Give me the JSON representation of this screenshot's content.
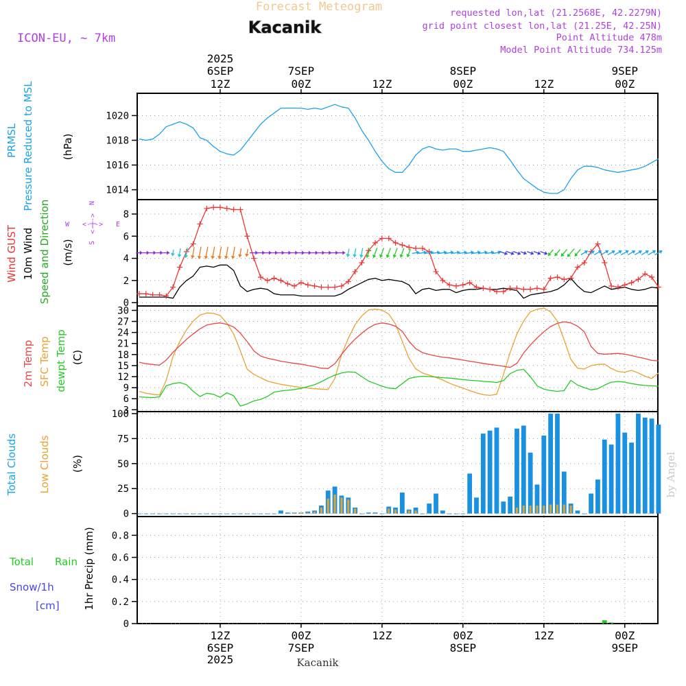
{
  "header": {
    "title": "Forecast Meteogram",
    "location": "Kacanik",
    "model": "ICON-EU,  ~ 7km",
    "requested": "requested lon,lat (21.2568E, 42.2279N)",
    "grid_point": "grid point closest lon,lat (21.25E, 42.25N)",
    "point_alt": "Point Altitude 478m",
    "model_alt": "Model Point Altitude 734.125m"
  },
  "footer_label": "Kacanik",
  "watermark": "by Angel",
  "time_axis": {
    "year_label": "2025",
    "top_ticks": [
      {
        "date": "6SEP",
        "hour": "12Z"
      },
      {
        "date": "7SEP",
        "hour": "00Z"
      },
      {
        "date": "",
        "hour": "12Z"
      },
      {
        "date": "8SEP",
        "hour": "00Z"
      },
      {
        "date": "",
        "hour": "12Z"
      },
      {
        "date": "9SEP",
        "hour": "00Z"
      }
    ],
    "tick_hours": [
      12,
      24,
      36,
      48,
      60,
      72
    ]
  },
  "panels": {
    "pressure": {
      "labels": [
        "PRMSL",
        "Pressure Reduced to MSL"
      ],
      "unit": "(hPa)",
      "ticks": [
        "1020",
        "1018",
        "1016",
        "1014"
      ]
    },
    "wind": {
      "labels": [
        "Wind GUST",
        "10m Wind",
        "Speed and Direction"
      ],
      "unit": "(m/s)",
      "ticks": [
        "8",
        "6",
        "4",
        "2",
        "0"
      ],
      "compass": {
        "n": "N",
        "s": "S",
        "e": "E",
        "w": "W",
        "arrows": "<-|->"
      }
    },
    "temperature": {
      "labels": [
        "2m Temp",
        "SFC Temp",
        "dewpt Temp"
      ],
      "unit": "(C)",
      "ticks": [
        "30",
        "27",
        "24",
        "21",
        "18",
        "15",
        "12",
        "9",
        "6",
        "3"
      ]
    },
    "clouds": {
      "labels": [
        "Total Clouds",
        "Low Clouds"
      ],
      "unit": "(%)",
      "ticks": [
        "100",
        "75",
        "50",
        "25",
        "0"
      ]
    },
    "precip": {
      "labels": [
        "Total",
        "Rain",
        "Snow/1h",
        "[cm]"
      ],
      "unit": "1hr Precip (mm)",
      "ticks": [
        "0.8",
        "0.6",
        "0.4",
        "0.2",
        "0"
      ]
    }
  },
  "colors": {
    "pressure": "#1aa3e8",
    "gust": "#ee3333",
    "wind": "#000000",
    "temp2m": "#e84545",
    "sfc": "#e8a232",
    "dew": "#22cc22",
    "total_clouds": "#1a90e0",
    "low_clouds": "#d9a441",
    "rain": "#22cc22",
    "snow": "#4444ee",
    "label_purple": "#b040e0",
    "title_orange": "#f0c890"
  },
  "chart_data": [
    {
      "type": "line",
      "name": "pressure",
      "title": "PRMSL Pressure Reduced to MSL",
      "ylabel": "hPa",
      "ylim": [
        1013.2,
        1021.8
      ],
      "x": [
        0,
        1,
        2,
        3,
        4,
        5,
        6,
        7,
        8,
        9,
        10,
        11,
        12,
        13,
        14,
        15,
        16,
        17,
        18,
        19,
        20,
        21,
        22,
        23,
        24,
        25,
        26,
        27,
        28,
        29,
        30,
        31,
        32,
        33,
        34,
        35,
        36,
        37,
        38,
        39,
        40,
        41,
        42,
        43,
        44,
        45,
        46,
        47,
        48,
        49,
        50,
        51,
        52,
        53,
        54,
        55,
        56,
        57,
        58,
        59,
        60,
        61,
        62,
        63,
        64,
        65,
        66,
        67,
        68,
        69,
        70,
        71,
        72,
        73,
        74,
        75,
        76,
        77
      ],
      "values": [
        1018.1,
        1018.0,
        1018.1,
        1018.5,
        1019.1,
        1019.3,
        1019.5,
        1019.3,
        1019.0,
        1018.2,
        1018.0,
        1017.5,
        1017.1,
        1016.9,
        1016.8,
        1017.2,
        1017.9,
        1018.6,
        1019.3,
        1019.8,
        1020.2,
        1020.6,
        1020.6,
        1020.6,
        1020.6,
        1020.5,
        1020.6,
        1020.5,
        1020.7,
        1020.9,
        1020.7,
        1020.6,
        1019.8,
        1018.8,
        1018.0,
        1017.1,
        1016.3,
        1015.7,
        1015.4,
        1015.4,
        1016.0,
        1016.8,
        1017.3,
        1017.5,
        1017.3,
        1017.2,
        1017.3,
        1017.3,
        1017.1,
        1017.1,
        1017.2,
        1017.3,
        1017.4,
        1017.3,
        1017.1,
        1016.4,
        1015.6,
        1014.9,
        1014.5,
        1014.1,
        1013.8,
        1013.7,
        1013.7,
        1014.0,
        1014.9,
        1015.6,
        1015.9,
        1015.9,
        1015.8,
        1015.6,
        1015.5,
        1015.4,
        1015.5,
        1015.6,
        1015.7,
        1015.9,
        1016.2,
        1016.5
      ]
    },
    {
      "type": "line",
      "name": "wind",
      "title": "Wind GUST / 10m Wind Speed and Direction",
      "ylabel": "m/s",
      "ylim": [
        -0.3,
        9.3
      ],
      "x": [
        0,
        1,
        2,
        3,
        4,
        5,
        6,
        7,
        8,
        9,
        10,
        11,
        12,
        13,
        14,
        15,
        16,
        17,
        18,
        19,
        20,
        21,
        22,
        23,
        24,
        25,
        26,
        27,
        28,
        29,
        30,
        31,
        32,
        33,
        34,
        35,
        36,
        37,
        38,
        39,
        40,
        41,
        42,
        43,
        44,
        45,
        46,
        47,
        48,
        49,
        50,
        51,
        52,
        53,
        54,
        55,
        56,
        57,
        58,
        59,
        60,
        61,
        62,
        63,
        64,
        65,
        66,
        67,
        68,
        69,
        70,
        71,
        72,
        73,
        74,
        75,
        76,
        77
      ],
      "series": [
        {
          "name": "Wind GUST",
          "values": [
            0.8,
            0.8,
            0.7,
            0.7,
            0.6,
            1.4,
            3.2,
            4.6,
            5.3,
            7.1,
            8.5,
            8.6,
            8.6,
            8.5,
            8.4,
            8.4,
            6.0,
            4.0,
            2.3,
            2.0,
            2.2,
            2.0,
            1.7,
            1.5,
            1.8,
            1.6,
            1.5,
            1.4,
            1.4,
            1.4,
            1.5,
            1.9,
            2.8,
            3.6,
            4.7,
            5.4,
            5.8,
            5.8,
            5.4,
            5.2,
            5.0,
            4.9,
            4.9,
            4.6,
            2.8,
            2.0,
            1.6,
            1.5,
            1.6,
            1.8,
            1.4,
            1.3,
            1.2,
            1.0,
            1.0,
            1.3,
            1.3,
            1.2,
            1.2,
            1.3,
            1.2,
            2.2,
            2.3,
            2.1,
            2.2,
            3.2,
            3.6,
            4.6,
            5.3,
            3.6,
            1.5,
            1.4,
            1.6,
            1.8,
            2.1,
            2.6,
            2.3,
            1.4
          ]
        },
        {
          "name": "10m Wind",
          "values": [
            0.5,
            0.5,
            0.5,
            0.5,
            0.5,
            0.4,
            1.4,
            2.0,
            2.4,
            3.2,
            3.3,
            3.2,
            3.4,
            3.4,
            2.9,
            1.5,
            1.0,
            1.2,
            1.3,
            1.2,
            0.8,
            0.7,
            0.7,
            0.7,
            0.6,
            0.6,
            0.6,
            0.6,
            0.6,
            0.6,
            0.8,
            1.2,
            1.5,
            1.8,
            2.1,
            2.2,
            2.0,
            2.1,
            2.0,
            1.9,
            1.6,
            0.8,
            1.2,
            1.3,
            1.1,
            1.2,
            1.2,
            0.9,
            1.1,
            1.2,
            1.2,
            1.3,
            1.2,
            1.2,
            1.3,
            1.2,
            1.1,
            0.4,
            0.7,
            0.8,
            0.9,
            1.0,
            1.2,
            1.6,
            2.2,
            1.5,
            1.0,
            0.9,
            1.2,
            1.5,
            1.2,
            1.3,
            1.4,
            1.2,
            1.1,
            1.2,
            1.4,
            1.3
          ]
        }
      ]
    },
    {
      "type": "line",
      "name": "temperature",
      "title": "2m Temp / SFC Temp / dewpt Temp",
      "ylabel": "C",
      "ylim": [
        2.5,
        31.2
      ],
      "x": [
        0,
        1,
        2,
        3,
        4,
        5,
        6,
        7,
        8,
        9,
        10,
        11,
        12,
        13,
        14,
        15,
        16,
        17,
        18,
        19,
        20,
        21,
        22,
        23,
        24,
        25,
        26,
        27,
        28,
        29,
        30,
        31,
        32,
        33,
        34,
        35,
        36,
        37,
        38,
        39,
        40,
        41,
        42,
        43,
        44,
        45,
        46,
        47,
        48,
        49,
        50,
        51,
        52,
        53,
        54,
        55,
        56,
        57,
        58,
        59,
        60,
        61,
        62,
        63,
        64,
        65,
        66,
        67,
        68,
        69,
        70,
        71,
        72,
        73,
        74,
        75,
        76,
        77
      ],
      "series": [
        {
          "name": "2m Temp",
          "values": [
            15.9,
            15.5,
            15.3,
            15.1,
            16.5,
            18.6,
            20.4,
            22.1,
            23.6,
            25.0,
            26.0,
            26.4,
            26.6,
            26.2,
            25.5,
            23.8,
            21.5,
            19.0,
            17.6,
            17.0,
            16.6,
            16.2,
            15.9,
            15.6,
            15.4,
            15.0,
            14.7,
            14.3,
            14.2,
            15.5,
            18.0,
            20.3,
            22.2,
            23.8,
            25.2,
            26.2,
            26.6,
            26.3,
            25.7,
            24.3,
            21.6,
            19.6,
            18.5,
            18.0,
            17.6,
            17.3,
            17.1,
            16.8,
            16.5,
            16.2,
            15.9,
            15.6,
            15.3,
            15.1,
            14.8,
            14.5,
            15.6,
            18.4,
            20.6,
            22.5,
            24.2,
            25.6,
            26.5,
            26.9,
            26.6,
            25.7,
            24.2,
            20.2,
            18.3,
            18.1,
            18.2,
            18.3,
            18.1,
            17.7,
            17.3,
            16.9,
            16.4,
            16.3
          ]
        },
        {
          "name": "SFC Temp",
          "values": [
            8.0,
            7.5,
            7.2,
            7.0,
            11.0,
            17.5,
            21.5,
            24.7,
            27.1,
            28.7,
            29.3,
            29.2,
            28.6,
            26.5,
            23.6,
            19.0,
            14.0,
            12.6,
            11.7,
            10.8,
            10.3,
            9.9,
            9.6,
            9.3,
            9.1,
            8.9,
            8.7,
            8.6,
            8.5,
            11.5,
            18.0,
            22.4,
            26.1,
            28.5,
            30.1,
            30.3,
            30.1,
            29.0,
            26.3,
            21.6,
            17.0,
            14.1,
            13.0,
            12.4,
            11.8,
            11.1,
            10.2,
            9.5,
            8.9,
            8.2,
            7.6,
            7.1,
            6.9,
            7.2,
            12.5,
            18.5,
            23.6,
            27.1,
            29.6,
            30.3,
            30.6,
            29.6,
            27.0,
            22.0,
            16.7,
            14.3,
            14.1,
            15.0,
            15.3,
            15.4,
            14.2,
            13.4,
            13.2,
            13.7,
            13.0,
            12.1,
            11.5,
            13.0
          ]
        },
        {
          "name": "dewpt Temp",
          "values": [
            6.5,
            6.4,
            6.3,
            6.5,
            9.5,
            10.1,
            10.4,
            9.8,
            8.0,
            6.6,
            7.5,
            7.2,
            6.4,
            7.6,
            6.8,
            4.0,
            4.6,
            5.4,
            5.8,
            6.6,
            7.8,
            8.1,
            8.3,
            8.5,
            8.8,
            9.3,
            9.8,
            10.6,
            11.6,
            12.4,
            13.0,
            13.3,
            13.2,
            12.0,
            10.8,
            10.1,
            9.4,
            8.9,
            8.7,
            10.1,
            11.5,
            11.9,
            12.1,
            12.0,
            11.9,
            11.7,
            11.6,
            11.4,
            11.2,
            11.0,
            10.9,
            10.7,
            10.6,
            10.4,
            10.9,
            12.8,
            13.7,
            14.0,
            12.0,
            9.5,
            8.6,
            8.2,
            8.0,
            8.2,
            11.0,
            9.7,
            9.0,
            8.4,
            8.7,
            9.7,
            10.5,
            10.7,
            10.5,
            10.1,
            9.8,
            9.6,
            9.5,
            9.4
          ]
        }
      ]
    },
    {
      "type": "bar",
      "name": "clouds",
      "title": "Total Clouds / Low Clouds",
      "ylabel": "%",
      "ylim": [
        -3,
        102
      ],
      "x": [
        0,
        1,
        2,
        3,
        4,
        5,
        6,
        7,
        8,
        9,
        10,
        11,
        12,
        13,
        14,
        15,
        16,
        17,
        18,
        19,
        20,
        21,
        22,
        23,
        24,
        25,
        26,
        27,
        28,
        29,
        30,
        31,
        32,
        33,
        34,
        35,
        36,
        37,
        38,
        39,
        40,
        41,
        42,
        43,
        44,
        45,
        46,
        47,
        48,
        49,
        50,
        51,
        52,
        53,
        54,
        55,
        56,
        57,
        58,
        59,
        60,
        61,
        62,
        63,
        64,
        65,
        66,
        67,
        68,
        69,
        70,
        71,
        72,
        73,
        74,
        75,
        76,
        77
      ],
      "series": [
        {
          "name": "Total Clouds",
          "values": [
            0,
            0,
            0,
            0,
            0,
            0,
            0,
            0,
            0,
            0,
            0,
            0,
            0,
            0,
            0,
            0,
            0,
            0,
            0,
            0,
            0,
            3,
            1,
            1,
            1,
            2,
            3,
            8,
            23,
            27,
            18,
            16,
            6,
            0,
            1,
            1,
            0,
            7,
            6,
            21,
            4,
            6,
            0,
            10,
            20,
            3,
            0,
            0,
            0,
            40,
            16,
            80,
            83,
            86,
            12,
            17,
            85,
            88,
            61,
            29,
            78,
            100,
            100,
            42,
            10,
            3,
            0,
            20,
            34,
            74,
            69,
            100,
            81,
            71,
            100,
            96,
            95,
            89
          ]
        },
        {
          "name": "Low Clouds",
          "values": [
            0,
            0,
            0,
            0,
            0,
            0,
            0,
            0,
            0,
            0,
            0,
            0,
            0,
            0,
            0,
            0,
            0,
            0,
            0,
            0,
            0,
            0,
            0,
            1,
            1,
            1,
            2,
            6,
            15,
            19,
            16,
            14,
            5,
            0,
            0,
            0,
            0,
            5,
            4,
            0,
            3,
            3,
            0,
            0,
            0,
            0,
            0,
            0,
            0,
            0,
            0,
            0,
            0,
            0,
            0,
            0,
            6,
            8,
            8,
            8,
            8,
            9,
            9,
            9,
            8,
            0,
            0,
            0,
            0,
            0,
            0,
            0,
            0,
            0,
            0,
            0,
            0,
            0
          ]
        }
      ]
    },
    {
      "type": "bar",
      "name": "precip",
      "title": "1hr Precip",
      "ylabel": "mm",
      "ylim": [
        0,
        0.97
      ],
      "x": [
        69,
        70
      ],
      "series": [
        {
          "name": "Total Rain",
          "values": [
            0.03,
            0.01
          ]
        }
      ]
    }
  ]
}
